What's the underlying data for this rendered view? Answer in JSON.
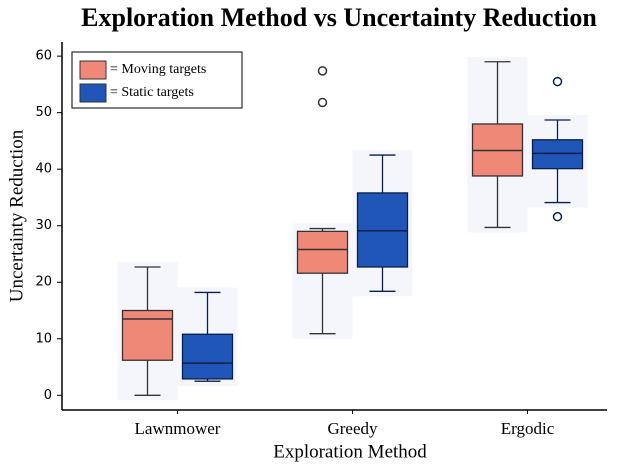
{
  "chart_data": {
    "type": "box",
    "title": "Exploration Method vs Uncertainty Reduction",
    "x_label": "Exploration Method",
    "y_label": "Uncertainty Reduction",
    "categories": [
      "Lawnmower",
      "Greedy",
      "Ergodic"
    ],
    "ylim": [
      -2.6,
      62.5
    ],
    "yticks": [
      0,
      10,
      20,
      30,
      40,
      50,
      60
    ],
    "legend": "upper left",
    "series": [
      {
        "name": "= Moving targets",
        "color": "#f08878",
        "boxes": [
          {
            "min": 0,
            "q1": 6.2,
            "median": 13.5,
            "q3": 15,
            "max": 22.7,
            "outliers": []
          },
          {
            "min": 10.9,
            "q1": 21.6,
            "median": 25.8,
            "q3": 29,
            "max": 29.5,
            "outliers": [
              51.8,
              57.4
            ]
          },
          {
            "min": 29.7,
            "q1": 38.8,
            "median": 43.3,
            "q3": 48,
            "max": 59,
            "outliers": []
          }
        ]
      },
      {
        "name": "= Static targets",
        "color": "#1f56b8",
        "boxes": [
          {
            "min": 2.5,
            "q1": 2.9,
            "median": 5.7,
            "q3": 10.8,
            "max": 18.2,
            "outliers": []
          },
          {
            "min": 18.4,
            "q1": 22.7,
            "median": 29.1,
            "q3": 35.8,
            "max": 42.5,
            "outliers": []
          },
          {
            "min": 34.1,
            "q1": 40.1,
            "median": 42.8,
            "q3": 45.2,
            "max": 48.7,
            "outliers": [
              55.5,
              31.6
            ]
          }
        ]
      }
    ]
  }
}
